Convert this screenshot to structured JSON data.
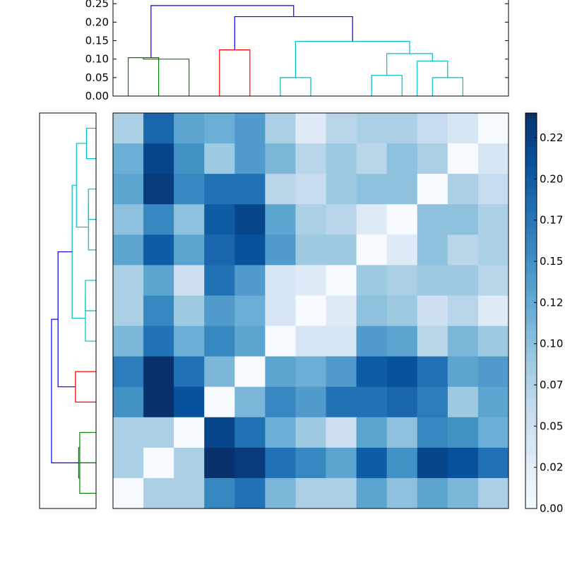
{
  "chart_data": {
    "type": "heatmap",
    "title": "",
    "xlabel": "",
    "ylabel": "",
    "grid": false,
    "colormap": "Blues",
    "colors": {
      "dendro_blue": "#0000ff",
      "dendro_green": "#008000",
      "dendro_red": "#ff0000",
      "dendro_cyan": "#00bfbf"
    },
    "top_dendrogram": {
      "yticks": [
        "0.00",
        "0.05",
        "0.10",
        "0.15",
        "0.20",
        "0.25"
      ],
      "ylim": [
        0,
        0.26
      ],
      "xlim": [
        0,
        130
      ],
      "links": [
        {
          "x1": 5,
          "y1": 0,
          "x2": 15,
          "y2": 0,
          "height": 0.104,
          "color": "dendro_green"
        },
        {
          "x1": 10,
          "y1": 0.104,
          "x2": 25,
          "y2": 0,
          "height": 0.1,
          "color": "dendro_green"
        },
        {
          "x1": 35,
          "y1": 0,
          "x2": 45,
          "y2": 0,
          "height": 0.125,
          "color": "dendro_red"
        },
        {
          "x1": 55,
          "y1": 0,
          "x2": 65,
          "y2": 0,
          "height": 0.05,
          "color": "dendro_cyan"
        },
        {
          "x1": 55,
          "y1": 0.05,
          "x2": 60,
          "y2": 0.05,
          "height": 0.05,
          "color": "dendro_cyan"
        },
        {
          "x1": 85,
          "y1": 0,
          "x2": 95,
          "y2": 0,
          "height": 0.056,
          "color": "dendro_cyan"
        },
        {
          "x1": 105,
          "y1": 0,
          "x2": 115,
          "y2": 0,
          "height": 0.05,
          "color": "dendro_cyan"
        },
        {
          "x1": 100,
          "y1": 0,
          "x2": 110,
          "y2": 0.05,
          "height": 0.095,
          "color": "dendro_cyan"
        },
        {
          "x1": 90,
          "y1": 0.056,
          "x2": 105,
          "y2": 0.095,
          "height": 0.115,
          "color": "dendro_cyan"
        },
        {
          "x1": 60,
          "y1": 0.05,
          "x2": 97.5,
          "y2": 0.115,
          "height": 0.148,
          "color": "dendro_cyan"
        },
        {
          "x1": 40,
          "y1": 0.125,
          "x2": 78.75,
          "y2": 0.148,
          "height": 0.215,
          "color": "dendro_blue"
        },
        {
          "x1": 12.5,
          "y1": 0.104,
          "x2": 59.375,
          "y2": 0.215,
          "height": 0.245,
          "color": "dendro_blue"
        }
      ]
    },
    "left_dendrogram": {
      "xlim": [
        0,
        0.26
      ],
      "ylim": [
        0,
        130
      ],
      "links": [
        {
          "x1": 5,
          "y1": 0,
          "x2": 15,
          "y2": 0,
          "height": 0.075,
          "color": "dendro_green"
        },
        {
          "x1": 15,
          "y1": 0,
          "x2": 25,
          "y2": 0,
          "height": 0.075,
          "color": "dendro_green"
        },
        {
          "x1": 10,
          "y1": 0.075,
          "x2": 20,
          "y2": 0.075,
          "height": 0.08,
          "color": "dendro_green"
        },
        {
          "x1": 35,
          "y1": 0,
          "x2": 45,
          "y2": 0,
          "height": 0.095,
          "color": "dendro_red"
        },
        {
          "x1": 65,
          "y1": 0,
          "x2": 75,
          "y2": 0,
          "height": 0.049,
          "color": "dendro_cyan"
        },
        {
          "x1": 55,
          "y1": 0,
          "x2": 70,
          "y2": 0.049,
          "height": 0.049,
          "color": "dendro_cyan"
        },
        {
          "x1": 95,
          "y1": 0,
          "x2": 105,
          "y2": 0,
          "height": 0.035,
          "color": "dendro_cyan"
        },
        {
          "x1": 85,
          "y1": 0,
          "x2": 100,
          "y2": 0.035,
          "height": 0.035,
          "color": "dendro_cyan"
        },
        {
          "x1": 115,
          "y1": 0,
          "x2": 125,
          "y2": 0,
          "height": 0.044,
          "color": "dendro_cyan"
        },
        {
          "x1": 92.5,
          "y1": 0.035,
          "x2": 120,
          "y2": 0.044,
          "height": 0.09,
          "color": "dendro_cyan"
        },
        {
          "x1": 62.5,
          "y1": 0.049,
          "x2": 106.25,
          "y2": 0.09,
          "height": 0.11,
          "color": "dendro_cyan"
        },
        {
          "x1": 40,
          "y1": 0.095,
          "x2": 84.375,
          "y2": 0.11,
          "height": 0.175,
          "color": "dendro_blue"
        },
        {
          "x1": 15,
          "y1": 0.08,
          "x2": 62.1875,
          "y2": 0.175,
          "height": 0.205,
          "color": "dendro_blue"
        }
      ]
    },
    "colorbar": {
      "range": [
        0,
        0.24
      ],
      "ticks": [
        {
          "value": 0.0,
          "label": "0.00"
        },
        {
          "value": 0.025,
          "label": "0.02"
        },
        {
          "value": 0.05,
          "label": "0.05"
        },
        {
          "value": 0.075,
          "label": "0.07"
        },
        {
          "value": 0.1,
          "label": "0.10"
        },
        {
          "value": 0.125,
          "label": "0.12"
        },
        {
          "value": 0.15,
          "label": "0.15"
        },
        {
          "value": 0.175,
          "label": "0.17"
        },
        {
          "value": 0.2,
          "label": "0.20"
        },
        {
          "value": 0.225,
          "label": "0.22"
        }
      ]
    },
    "matrix": [
      [
        0.08,
        0.19,
        0.13,
        0.12,
        0.14,
        0.08,
        0.03,
        0.07,
        0.08,
        0.08,
        0.06,
        0.04,
        0.0
      ],
      [
        0.12,
        0.22,
        0.15,
        0.09,
        0.14,
        0.11,
        0.07,
        0.09,
        0.07,
        0.1,
        0.08,
        0.0,
        0.04
      ],
      [
        0.13,
        0.23,
        0.16,
        0.18,
        0.18,
        0.07,
        0.06,
        0.09,
        0.1,
        0.1,
        0.0,
        0.08,
        0.06
      ],
      [
        0.1,
        0.16,
        0.1,
        0.2,
        0.22,
        0.13,
        0.08,
        0.07,
        0.03,
        0.0,
        0.1,
        0.1,
        0.08
      ],
      [
        0.13,
        0.2,
        0.13,
        0.19,
        0.21,
        0.14,
        0.09,
        0.09,
        0.0,
        0.03,
        0.1,
        0.07,
        0.08
      ],
      [
        0.08,
        0.13,
        0.05,
        0.18,
        0.14,
        0.04,
        0.03,
        0.0,
        0.09,
        0.08,
        0.09,
        0.09,
        0.07
      ],
      [
        0.08,
        0.16,
        0.09,
        0.14,
        0.12,
        0.04,
        0.0,
        0.03,
        0.1,
        0.09,
        0.05,
        0.07,
        0.03
      ],
      [
        0.11,
        0.18,
        0.12,
        0.16,
        0.13,
        0.0,
        0.04,
        0.04,
        0.14,
        0.13,
        0.07,
        0.11,
        0.09
      ],
      [
        0.17,
        0.24,
        0.18,
        0.11,
        0.0,
        0.13,
        0.12,
        0.14,
        0.2,
        0.21,
        0.18,
        0.13,
        0.14
      ],
      [
        0.15,
        0.25,
        0.21,
        0.0,
        0.11,
        0.16,
        0.14,
        0.18,
        0.18,
        0.19,
        0.17,
        0.09,
        0.13
      ],
      [
        0.08,
        0.08,
        0.0,
        0.22,
        0.18,
        0.12,
        0.09,
        0.05,
        0.13,
        0.1,
        0.16,
        0.15,
        0.12
      ],
      [
        0.08,
        0.0,
        0.08,
        0.25,
        0.23,
        0.18,
        0.16,
        0.13,
        0.2,
        0.15,
        0.22,
        0.21,
        0.18
      ],
      [
        0.0,
        0.08,
        0.08,
        0.16,
        0.18,
        0.11,
        0.08,
        0.08,
        0.13,
        0.1,
        0.13,
        0.11,
        0.08
      ]
    ]
  }
}
